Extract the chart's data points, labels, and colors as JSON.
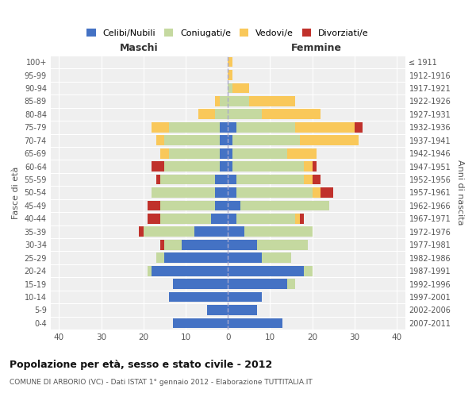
{
  "age_groups": [
    "0-4",
    "5-9",
    "10-14",
    "15-19",
    "20-24",
    "25-29",
    "30-34",
    "35-39",
    "40-44",
    "45-49",
    "50-54",
    "55-59",
    "60-64",
    "65-69",
    "70-74",
    "75-79",
    "80-84",
    "85-89",
    "90-94",
    "95-99",
    "100+"
  ],
  "birth_years": [
    "2007-2011",
    "2002-2006",
    "1997-2001",
    "1992-1996",
    "1987-1991",
    "1982-1986",
    "1977-1981",
    "1972-1976",
    "1967-1971",
    "1962-1966",
    "1957-1961",
    "1952-1956",
    "1947-1951",
    "1942-1946",
    "1937-1941",
    "1932-1936",
    "1927-1931",
    "1922-1926",
    "1917-1921",
    "1912-1916",
    "≤ 1911"
  ],
  "male_celibe": [
    13,
    5,
    14,
    13,
    18,
    15,
    11,
    8,
    4,
    3,
    3,
    3,
    2,
    2,
    2,
    2,
    0,
    0,
    0,
    0,
    0
  ],
  "male_coniugato": [
    0,
    0,
    0,
    0,
    1,
    2,
    4,
    12,
    12,
    13,
    15,
    13,
    13,
    12,
    13,
    12,
    3,
    2,
    0,
    0,
    0
  ],
  "male_vedovo": [
    0,
    0,
    0,
    0,
    0,
    0,
    0,
    0,
    0,
    0,
    0,
    0,
    0,
    2,
    2,
    4,
    4,
    1,
    0,
    0,
    0
  ],
  "male_divorziato": [
    0,
    0,
    0,
    0,
    0,
    0,
    1,
    1,
    3,
    3,
    0,
    1,
    3,
    0,
    0,
    0,
    0,
    0,
    0,
    0,
    0
  ],
  "female_celibe": [
    13,
    7,
    8,
    14,
    18,
    8,
    7,
    4,
    2,
    3,
    2,
    2,
    1,
    1,
    1,
    2,
    0,
    0,
    0,
    0,
    0
  ],
  "female_coniugato": [
    0,
    0,
    0,
    2,
    2,
    7,
    12,
    16,
    14,
    21,
    18,
    16,
    17,
    13,
    16,
    14,
    8,
    5,
    1,
    0,
    0
  ],
  "female_vedovo": [
    0,
    0,
    0,
    0,
    0,
    0,
    0,
    0,
    1,
    0,
    2,
    2,
    2,
    7,
    14,
    14,
    14,
    11,
    4,
    1,
    1
  ],
  "female_divorziata": [
    0,
    0,
    0,
    0,
    0,
    0,
    0,
    0,
    1,
    0,
    3,
    2,
    1,
    0,
    0,
    2,
    0,
    0,
    0,
    0,
    0
  ],
  "color_celibe": "#4472c4",
  "color_coniugato": "#c5d9a0",
  "color_vedovo": "#f9c85a",
  "color_divorziato": "#c0312b",
  "legend_labels": [
    "Celibi/Nubili",
    "Coniugati/e",
    "Vedovi/e",
    "Divorziati/e"
  ],
  "title": "Popolazione per età, sesso e stato civile - 2012",
  "subtitle": "COMUNE DI ARBORIO (VC) - Dati ISTAT 1° gennaio 2012 - Elaborazione TUTTITALIA.IT",
  "label_maschi": "Maschi",
  "label_femmine": "Femmine",
  "ylabel_left": "Fasce di età",
  "ylabel_right": "Anni di nascita",
  "xlim": 42,
  "bg_color": "#ffffff",
  "plot_bg": "#efefef"
}
